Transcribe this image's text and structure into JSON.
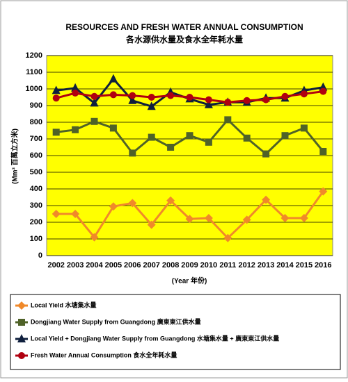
{
  "chart_data": {
    "type": "line",
    "title": "RESOURCES AND FRESH WATER ANNUAL CONSUMPTION",
    "subtitle": "各水源供水量及食水全年耗水量",
    "y_label": "(Mm³ 百萬立方米)",
    "x_label": "(Year 年份)",
    "categories": [
      "2002",
      "2003",
      "2004",
      "2005",
      "2006",
      "2007",
      "2008",
      "2009",
      "2010",
      "2011",
      "2012",
      "2013",
      "2014",
      "2015",
      "2016"
    ],
    "series": [
      {
        "name": "Local Yield 水塘集水量",
        "color": "#f0892a",
        "marker": "diamond",
        "values": [
          250,
          250,
          110,
          295,
          315,
          185,
          330,
          220,
          225,
          105,
          215,
          335,
          225,
          225,
          385
        ]
      },
      {
        "name": "Dongjiang Water Supply from Guangdong 廣東東江供水量",
        "color": "#4f6228",
        "marker": "square",
        "values": [
          740,
          755,
          805,
          765,
          615,
          710,
          650,
          720,
          680,
          815,
          705,
          610,
          720,
          765,
          625
        ]
      },
      {
        "name": "Local Yield + Dongjiang Water Supply from Guangdong 水塘集水量 + 廣東東江供水量",
        "color": "#0f1f3d",
        "marker": "triangle",
        "values": [
          990,
          1005,
          915,
          1060,
          930,
          895,
          980,
          940,
          905,
          920,
          920,
          945,
          945,
          990,
          1010
        ]
      },
      {
        "name": "Fresh Water Annual Consumption 食水全年耗水量",
        "color": "#b00010",
        "marker": "circle",
        "values": [
          945,
          975,
          955,
          965,
          960,
          950,
          960,
          950,
          935,
          920,
          930,
          935,
          955,
          970,
          985
        ]
      }
    ],
    "ylim": [
      0,
      1200
    ],
    "yticks": [
      0,
      100,
      200,
      300,
      400,
      500,
      600,
      700,
      800,
      900,
      1000,
      1100,
      1200
    ],
    "grid": true,
    "plot_background": "#ffff00"
  }
}
